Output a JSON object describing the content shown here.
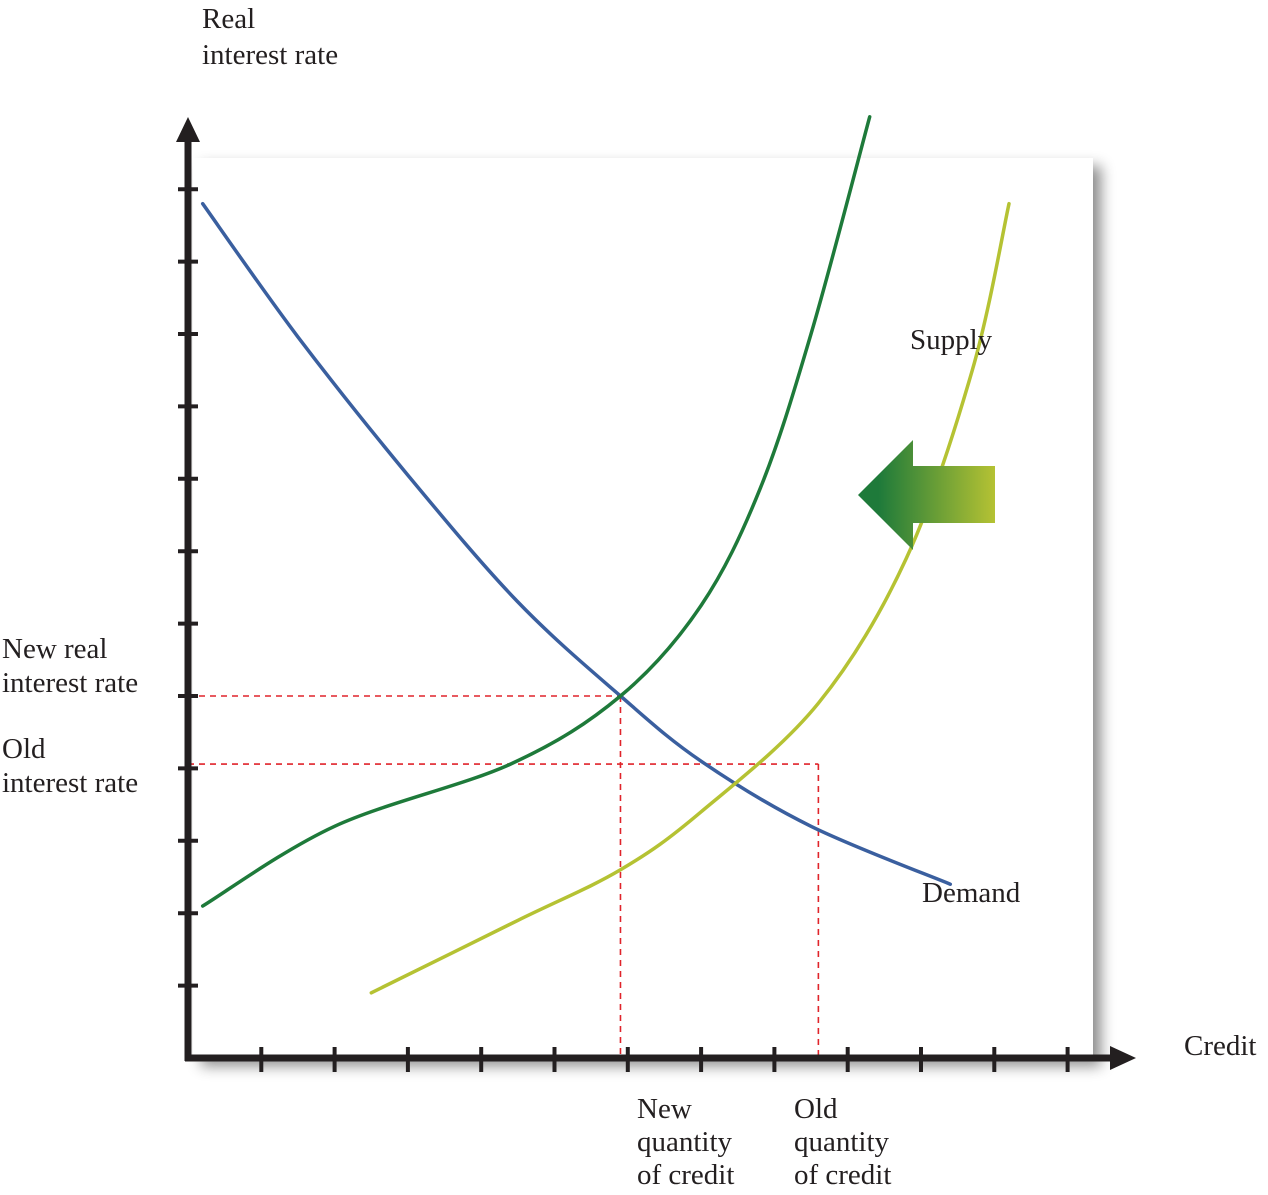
{
  "chart_data": {
    "type": "line",
    "title": "",
    "xlabel": "Credit",
    "ylabel": [
      "Real",
      "interest rate"
    ],
    "xlim": [
      0,
      12
    ],
    "ylim": [
      0,
      12.5
    ],
    "xticks": [
      1,
      2,
      3,
      4,
      5,
      6,
      7,
      8,
      9,
      10,
      11,
      12
    ],
    "yticks": [
      1,
      2,
      3,
      4,
      5,
      6,
      7,
      8,
      9,
      10,
      11,
      12
    ],
    "tick_labels_shown": false,
    "grid": false,
    "series": [
      {
        "name": "Demand",
        "color": "#3a5f9f",
        "points": [
          [
            0.2,
            11.8
          ],
          [
            1.5,
            9.96
          ],
          [
            3.0,
            8.05
          ],
          [
            4.5,
            6.3
          ],
          [
            5.9,
            5.0
          ],
          [
            7.0,
            4.1
          ],
          [
            8.5,
            3.2
          ],
          [
            10.4,
            2.4
          ]
        ]
      },
      {
        "name": "Supply",
        "color": "#1e7a3a",
        "points": [
          [
            0.2,
            2.1
          ],
          [
            2.0,
            3.2
          ],
          [
            4.4,
            4.06
          ],
          [
            5.9,
            5.0
          ],
          [
            7.0,
            6.25
          ],
          [
            7.8,
            7.85
          ],
          [
            8.5,
            10.0
          ],
          [
            9.3,
            13.0
          ]
        ]
      },
      {
        "name": "",
        "color": "#b5c233",
        "points": [
          [
            2.5,
            0.9
          ],
          [
            4.5,
            1.9
          ],
          [
            5.9,
            2.6
          ],
          [
            7.0,
            3.4
          ],
          [
            8.6,
            4.9
          ],
          [
            9.8,
            6.9
          ],
          [
            10.7,
            9.5
          ],
          [
            11.2,
            11.8
          ]
        ]
      }
    ],
    "annotations": {
      "new_rate": {
        "label": [
          "New real",
          "interest rate"
        ],
        "y": 5.0
      },
      "old_rate": {
        "label": [
          "Old",
          "interest rate"
        ],
        "y": 4.06
      },
      "new_quantity": {
        "label": [
          "New",
          "quantity",
          "of credit"
        ],
        "x": 5.9
      },
      "old_quantity": {
        "label": [
          "Old",
          "quantity",
          "of credit"
        ],
        "x": 8.6
      }
    },
    "shift_arrow": {
      "direction": "left",
      "from_color": "#b5c233",
      "to_color": "#1e7a3a"
    },
    "guide_color": "#e0242b"
  }
}
